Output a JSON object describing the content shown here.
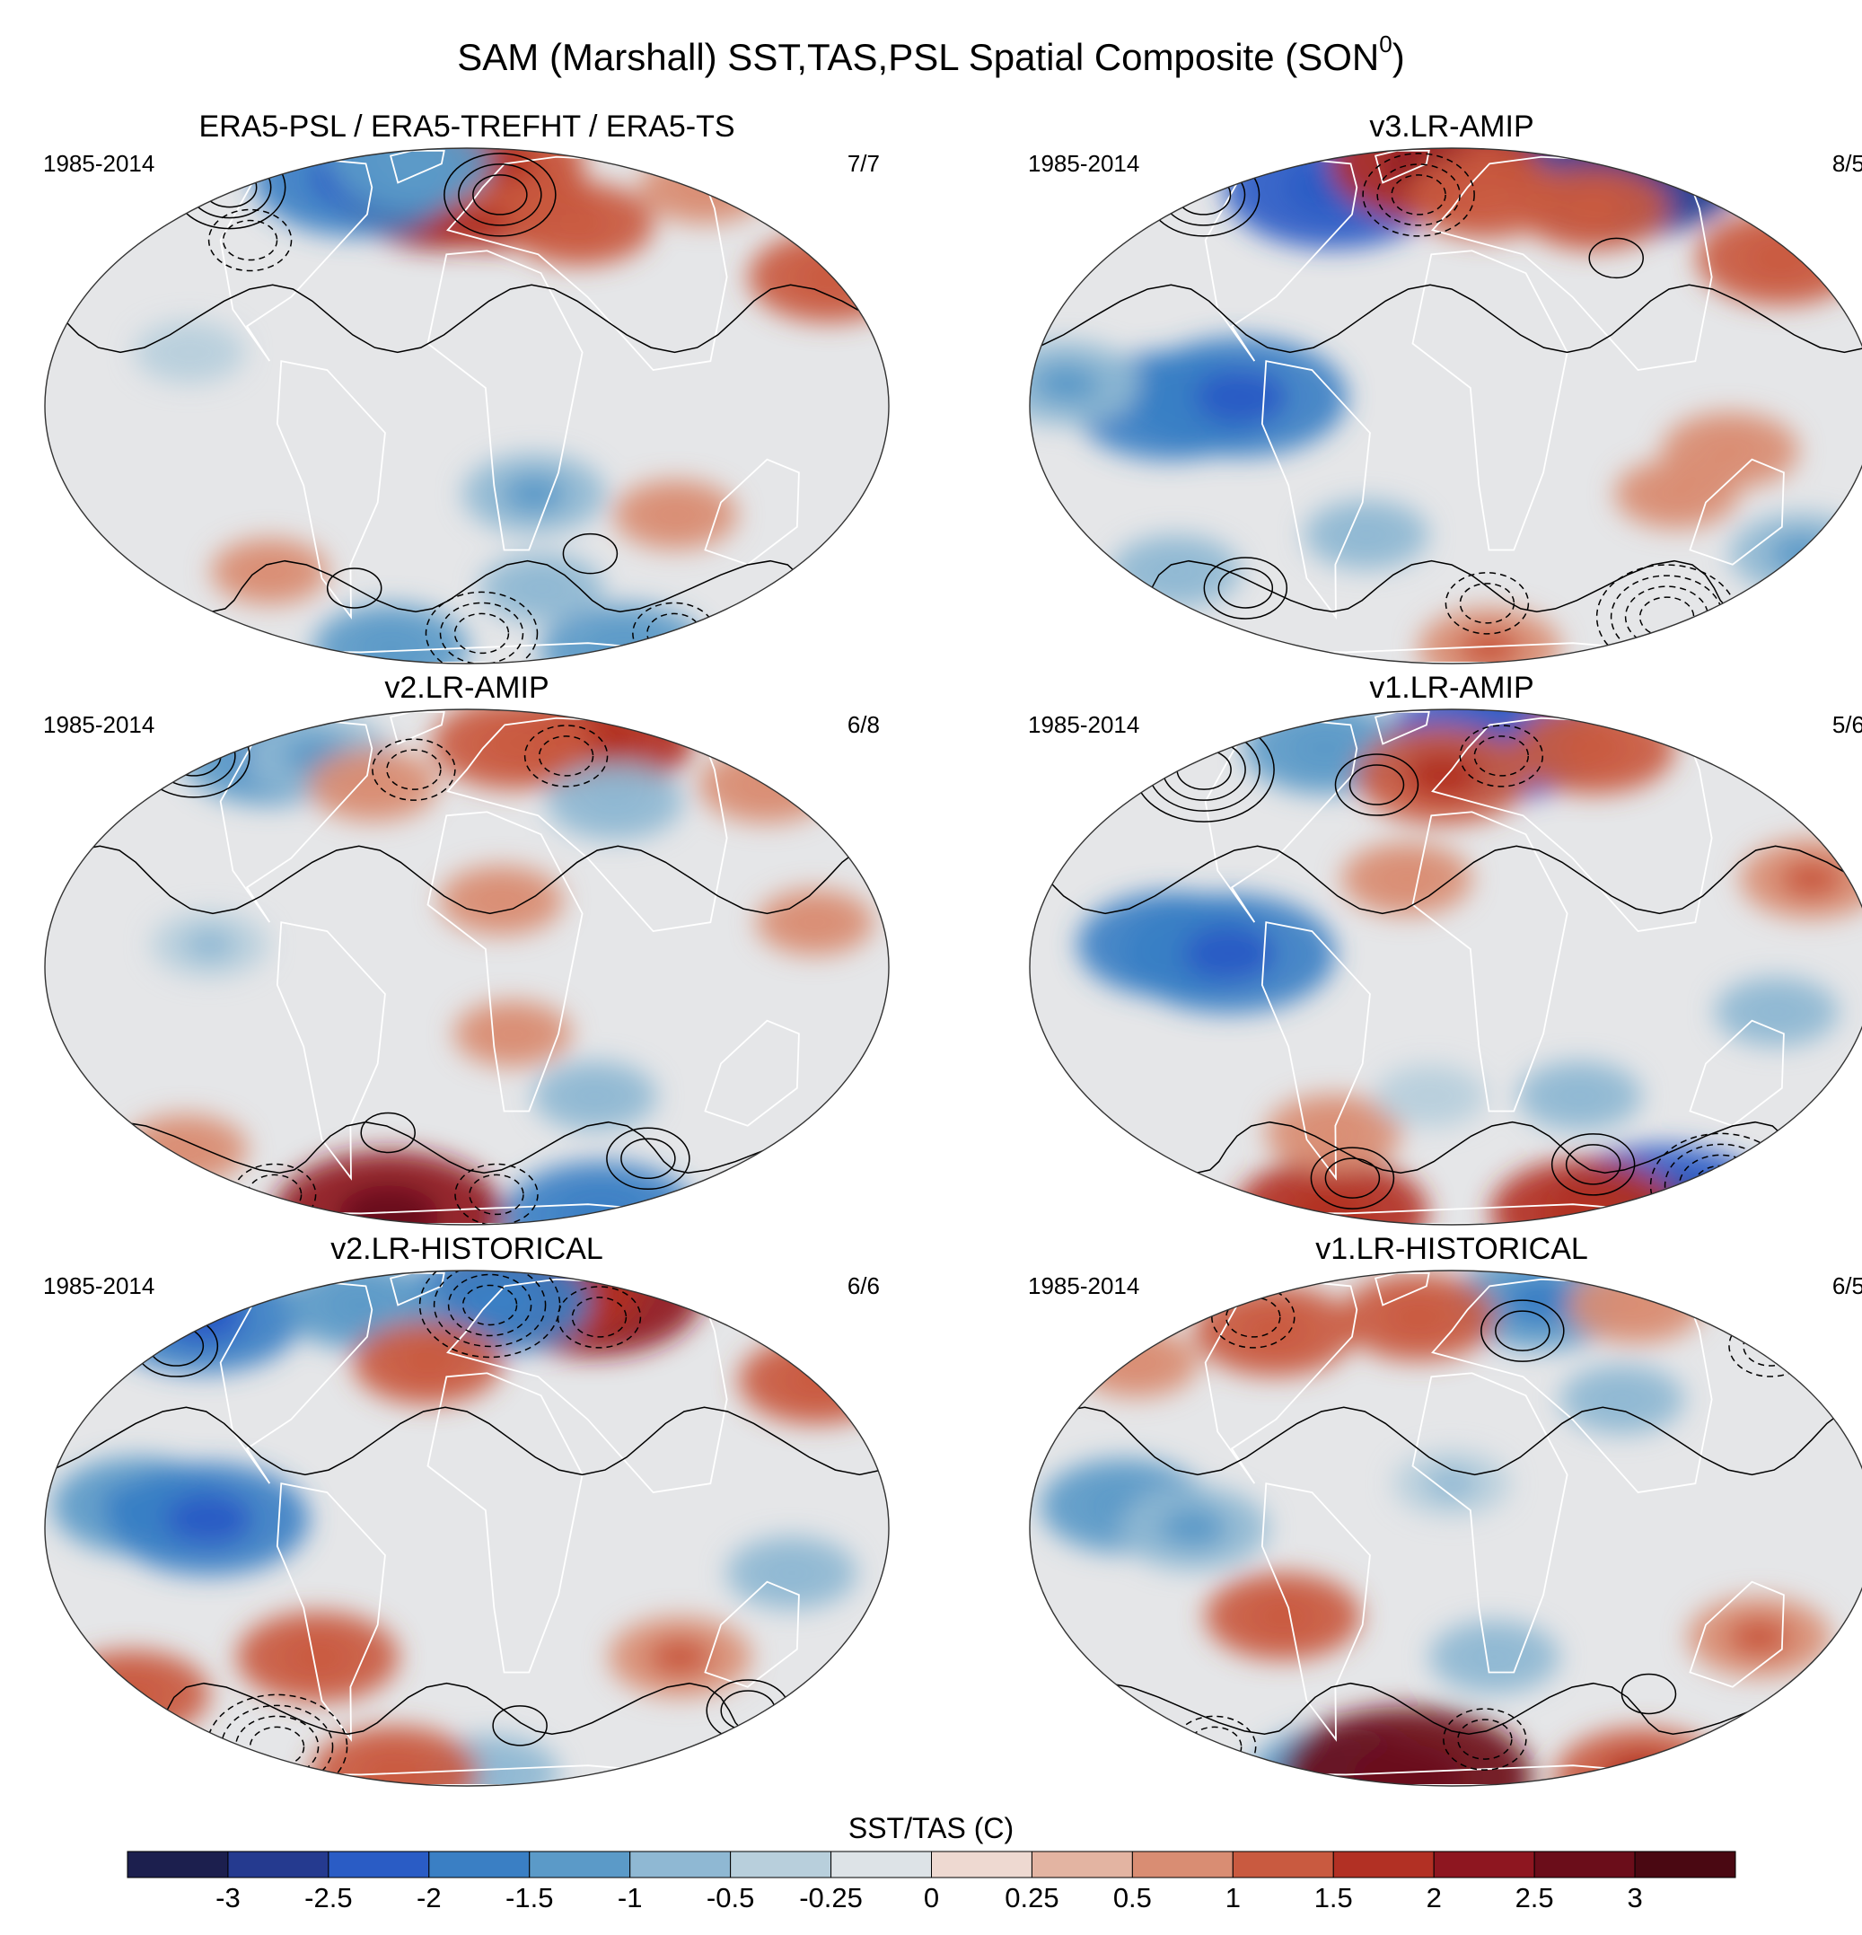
{
  "chart_data": {
    "type": "map",
    "title": "SAM (Marshall) SST,TAS,PSL Spatial Composite (SON",
    "title_superscript": "0",
    "title_close": ")",
    "colorbar": {
      "label": "SST/TAS (C)",
      "levels": [
        "-3",
        "-2.5",
        "-2",
        "-1.5",
        "-1",
        "-0.5",
        "-0.25",
        "0",
        "0.25",
        "0.5",
        "1",
        "1.5",
        "2",
        "2.5",
        "3"
      ],
      "colors": [
        "#1c1f4e",
        "#253a8f",
        "#2a5cc5",
        "#3a7fc4",
        "#5b9ac8",
        "#8fb8d3",
        "#b8cfdc",
        "#dde3e7",
        "#eed9d1",
        "#e3b4a2",
        "#d98d73",
        "#c95a40",
        "#b23024",
        "#8e1620",
        "#6b0d1a",
        "#4a0812"
      ]
    },
    "panels": [
      {
        "title": "ERA5-PSL / ERA5-TREFHT / ERA5-TS",
        "period": "1985-2014",
        "count": "7/7",
        "anomalies": [
          {
            "lon": -15,
            "lat": 58,
            "v": 2.1
          },
          {
            "lon": 15,
            "lat": 55,
            "v": 1.7
          },
          {
            "lon": 25,
            "lat": 72,
            "v": 1.4
          },
          {
            "lon": -75,
            "lat": 62,
            "v": -1.9
          },
          {
            "lon": -45,
            "lat": 70,
            "v": -1.2
          },
          {
            "lon": 170,
            "lat": 30,
            "v": 1.2
          },
          {
            "lon": 150,
            "lat": 58,
            "v": 0.7
          },
          {
            "lon": -120,
            "lat": 12,
            "v": -0.4
          },
          {
            "lon": 30,
            "lat": -20,
            "v": -0.9
          },
          {
            "lon": 95,
            "lat": -25,
            "v": 0.6
          },
          {
            "lon": 60,
            "lat": 45,
            "v": 1.0
          },
          {
            "lon": -60,
            "lat": -70,
            "v": -1.1
          },
          {
            "lon": 130,
            "lat": -72,
            "v": -1.3
          },
          {
            "lon": -100,
            "lat": -40,
            "v": 0.5
          },
          {
            "lon": 40,
            "lat": -45,
            "v": -0.6
          }
        ],
        "contours": [
          {
            "lon": -150,
            "lat": 58,
            "amp": 3,
            "dashed": false
          },
          {
            "lon": 20,
            "lat": 55,
            "amp": 3,
            "dashed": false
          },
          {
            "lon": -110,
            "lat": 40,
            "amp": 2,
            "dashed": true
          },
          {
            "lon": 10,
            "lat": -62,
            "amp": 3,
            "dashed": true
          },
          {
            "lon": 140,
            "lat": -62,
            "amp": 2,
            "dashed": true
          },
          {
            "lon": -60,
            "lat": -45,
            "amp": 1,
            "dashed": false
          },
          {
            "lon": 60,
            "lat": -35,
            "amp": 1,
            "dashed": false
          }
        ]
      },
      {
        "title": "v3.LR-AMIP",
        "period": "1985-2014",
        "count": "8/5",
        "anomalies": [
          {
            "lon": 130,
            "lat": 68,
            "v": -2.6
          },
          {
            "lon": -75,
            "lat": 58,
            "v": -2.1
          },
          {
            "lon": -15,
            "lat": 70,
            "v": 1.9
          },
          {
            "lon": 20,
            "lat": 55,
            "v": 1.1
          },
          {
            "lon": -120,
            "lat": 0,
            "v": -1.7
          },
          {
            "lon": -90,
            "lat": 2,
            "v": -2.0
          },
          {
            "lon": -165,
            "lat": 5,
            "v": -1.0
          },
          {
            "lon": 160,
            "lat": 35,
            "v": 1.3
          },
          {
            "lon": 80,
            "lat": 50,
            "v": 1.0
          },
          {
            "lon": -40,
            "lat": -30,
            "v": -0.6
          },
          {
            "lon": 100,
            "lat": -20,
            "v": 0.6
          },
          {
            "lon": 30,
            "lat": -70,
            "v": 0.9
          },
          {
            "lon": -140,
            "lat": -40,
            "v": -0.7
          },
          {
            "lon": 170,
            "lat": -35,
            "v": -0.9
          },
          {
            "lon": 120,
            "lat": -10,
            "v": 0.8
          }
        ],
        "contours": [
          {
            "lon": -150,
            "lat": 55,
            "amp": 3,
            "dashed": false
          },
          {
            "lon": -20,
            "lat": 55,
            "amp": 3,
            "dashed": true
          },
          {
            "lon": 130,
            "lat": -55,
            "amp": 4,
            "dashed": true
          },
          {
            "lon": -110,
            "lat": -45,
            "amp": 2,
            "dashed": false
          },
          {
            "lon": 20,
            "lat": -50,
            "amp": 2,
            "dashed": true
          },
          {
            "lon": 80,
            "lat": 35,
            "amp": 1,
            "dashed": false
          }
        ]
      },
      {
        "title": "v2.LR-AMIP",
        "period": "1985-2014",
        "count": "6/8",
        "anomalies": [
          {
            "lon": 90,
            "lat": 62,
            "v": 1.6
          },
          {
            "lon": 30,
            "lat": 60,
            "v": 1.2
          },
          {
            "lon": -120,
            "lat": 55,
            "v": -1.4
          },
          {
            "lon": -90,
            "lat": 55,
            "v": -1.0
          },
          {
            "lon": 160,
            "lat": 45,
            "v": 0.8
          },
          {
            "lon": -50,
            "lat": 45,
            "v": 0.7
          },
          {
            "lon": 75,
            "lat": 40,
            "v": -0.8
          },
          {
            "lon": 120,
            "lat": -75,
            "v": -1.7
          },
          {
            "lon": -70,
            "lat": -75,
            "v": 2.3
          },
          {
            "lon": -150,
            "lat": -45,
            "v": 0.6
          },
          {
            "lon": 20,
            "lat": -15,
            "v": 0.5
          },
          {
            "lon": -110,
            "lat": 5,
            "v": -0.5
          },
          {
            "lon": 150,
            "lat": 10,
            "v": 0.5
          },
          {
            "lon": 60,
            "lat": -30,
            "v": -0.6
          },
          {
            "lon": 15,
            "lat": 15,
            "v": 0.6
          }
        ],
        "contours": [
          {
            "lon": -165,
            "lat": 55,
            "amp": 3,
            "dashed": false
          },
          {
            "lon": 60,
            "lat": 55,
            "amp": 2,
            "dashed": true
          },
          {
            "lon": -30,
            "lat": 50,
            "amp": 2,
            "dashed": true
          },
          {
            "lon": 100,
            "lat": -48,
            "amp": 2,
            "dashed": false
          },
          {
            "lon": -130,
            "lat": -62,
            "amp": 2,
            "dashed": true
          },
          {
            "lon": 20,
            "lat": -62,
            "amp": 2,
            "dashed": true
          },
          {
            "lon": -40,
            "lat": -40,
            "amp": 1,
            "dashed": false
          }
        ]
      },
      {
        "title": "v1.LR-AMIP",
        "period": "1985-2014",
        "count": "5/6",
        "anomalies": [
          {
            "lon": 30,
            "lat": 62,
            "v": -2.1
          },
          {
            "lon": -80,
            "lat": 58,
            "v": -1.2
          },
          {
            "lon": -5,
            "lat": 48,
            "v": 1.4
          },
          {
            "lon": 90,
            "lat": 58,
            "v": 1.2
          },
          {
            "lon": -120,
            "lat": 5,
            "v": -1.6
          },
          {
            "lon": -95,
            "lat": 3,
            "v": -2.0
          },
          {
            "lon": 160,
            "lat": 20,
            "v": 0.9
          },
          {
            "lon": -20,
            "lat": 20,
            "v": 0.7
          },
          {
            "lon": 140,
            "lat": -10,
            "v": -0.6
          },
          {
            "lon": 175,
            "lat": -72,
            "v": -2.4
          },
          {
            "lon": 110,
            "lat": -72,
            "v": 1.6
          },
          {
            "lon": -100,
            "lat": -72,
            "v": 1.7
          },
          {
            "lon": -60,
            "lat": -40,
            "v": 0.8
          },
          {
            "lon": 60,
            "lat": -30,
            "v": -0.6
          },
          {
            "lon": -10,
            "lat": -30,
            "v": -0.4
          }
        ],
        "contours": [
          {
            "lon": -140,
            "lat": 50,
            "amp": 4,
            "dashed": false
          },
          {
            "lon": 30,
            "lat": 55,
            "amp": 2,
            "dashed": true
          },
          {
            "lon": -40,
            "lat": 45,
            "amp": 2,
            "dashed": false
          },
          {
            "lon": 170,
            "lat": -58,
            "amp": 4,
            "dashed": true
          },
          {
            "lon": 80,
            "lat": -50,
            "amp": 2,
            "dashed": false
          },
          {
            "lon": -60,
            "lat": -55,
            "amp": 2,
            "dashed": false
          }
        ]
      },
      {
        "title": "v2.LR-HISTORICAL",
        "period": "1985-2014",
        "count": "6/6",
        "anomalies": [
          {
            "lon": 90,
            "lat": 65,
            "v": 2.1
          },
          {
            "lon": 60,
            "lat": 70,
            "v": 1.8
          },
          {
            "lon": -160,
            "lat": 55,
            "v": -1.8
          },
          {
            "lon": 20,
            "lat": 62,
            "v": -1.6
          },
          {
            "lon": -70,
            "lat": 60,
            "v": -1.1
          },
          {
            "lon": 170,
            "lat": 35,
            "v": 1.1
          },
          {
            "lon": -140,
            "lat": 5,
            "v": -1.4
          },
          {
            "lon": -110,
            "lat": 2,
            "v": -1.8
          },
          {
            "lon": -170,
            "lat": -40,
            "v": 1.1
          },
          {
            "lon": -70,
            "lat": -30,
            "v": 1.2
          },
          {
            "lon": 100,
            "lat": -30,
            "v": 0.9
          },
          {
            "lon": 20,
            "lat": -72,
            "v": -0.8
          },
          {
            "lon": -60,
            "lat": -72,
            "v": 1.3
          },
          {
            "lon": 140,
            "lat": -10,
            "v": -0.7
          },
          {
            "lon": -20,
            "lat": 40,
            "v": 1.0
          }
        ],
        "contours": [
          {
            "lon": 15,
            "lat": 60,
            "amp": 4,
            "dashed": true
          },
          {
            "lon": -155,
            "lat": 45,
            "amp": 2,
            "dashed": false
          },
          {
            "lon": 80,
            "lat": 55,
            "amp": 2,
            "dashed": true
          },
          {
            "lon": -120,
            "lat": -58,
            "amp": 4,
            "dashed": true
          },
          {
            "lon": 150,
            "lat": -45,
            "amp": 2,
            "dashed": false
          },
          {
            "lon": 30,
            "lat": -50,
            "amp": 1,
            "dashed": false
          }
        ]
      },
      {
        "title": "v1.LR-HISTORICAL",
        "period": "1985-2014",
        "count": "6/5",
        "anomalies": [
          {
            "lon": 60,
            "lat": 62,
            "v": -1.4
          },
          {
            "lon": -100,
            "lat": 50,
            "v": 1.2
          },
          {
            "lon": -20,
            "lat": 55,
            "v": 1.1
          },
          {
            "lon": 120,
            "lat": 60,
            "v": 0.8
          },
          {
            "lon": -140,
            "lat": 5,
            "v": -1.3
          },
          {
            "lon": -110,
            "lat": 0,
            "v": -1.0
          },
          {
            "lon": -75,
            "lat": -20,
            "v": 1.1
          },
          {
            "lon": 140,
            "lat": -25,
            "v": 0.9
          },
          {
            "lon": 170,
            "lat": -75,
            "v": 1.4
          },
          {
            "lon": -100,
            "lat": -75,
            "v": -1.5
          },
          {
            "lon": -40,
            "lat": -75,
            "v": 2.6
          },
          {
            "lon": 20,
            "lat": -30,
            "v": -0.7
          },
          {
            "lon": 80,
            "lat": 30,
            "v": -0.6
          },
          {
            "lon": -160,
            "lat": 40,
            "v": 0.6
          },
          {
            "lon": 0,
            "lat": 10,
            "v": -0.5
          }
        ],
        "contours": [
          {
            "lon": -120,
            "lat": 55,
            "amp": 2,
            "dashed": true
          },
          {
            "lon": 40,
            "lat": 50,
            "amp": 2,
            "dashed": false
          },
          {
            "lon": 170,
            "lat": 45,
            "amp": 2,
            "dashed": true
          },
          {
            "lon": -150,
            "lat": -58,
            "amp": 2,
            "dashed": true
          },
          {
            "lon": 20,
            "lat": -55,
            "amp": 2,
            "dashed": true
          },
          {
            "lon": 100,
            "lat": -40,
            "amp": 1,
            "dashed": false
          }
        ]
      }
    ]
  }
}
